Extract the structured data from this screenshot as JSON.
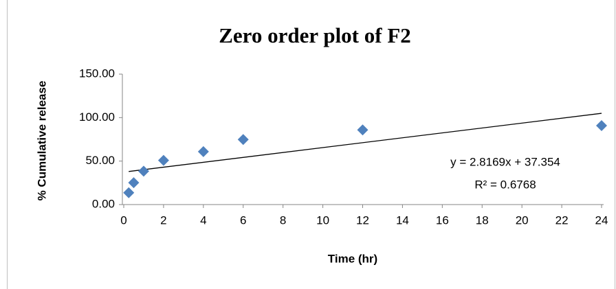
{
  "chart_data": {
    "type": "scatter",
    "title": "Zero order plot of F2",
    "xlabel": "Time (hr)",
    "ylabel": "% Cumulative release",
    "x": [
      0.25,
      0.5,
      1,
      2,
      4,
      6,
      12,
      24
    ],
    "series": [
      {
        "name": "F2",
        "color": "#4f81bd",
        "values": [
          13.6,
          25.2,
          38.4,
          50.8,
          60.9,
          74.8,
          85.9,
          90.8
        ]
      }
    ],
    "xlim": [
      0,
      24
    ],
    "xticks": [
      0,
      2,
      4,
      6,
      8,
      10,
      12,
      14,
      16,
      18,
      20,
      22,
      24
    ],
    "ylim": [
      0,
      150
    ],
    "yticks": [
      {
        "value": 0,
        "label": "0.00"
      },
      {
        "value": 50,
        "label": "50.00"
      },
      {
        "value": 100,
        "label": "100.00"
      },
      {
        "value": 150,
        "label": "150.00"
      }
    ],
    "trendline": {
      "slope": 2.8169,
      "intercept": 37.354,
      "equation": "y = 2.8169x + 37.354",
      "r_squared": "R² = 0.6768"
    }
  }
}
